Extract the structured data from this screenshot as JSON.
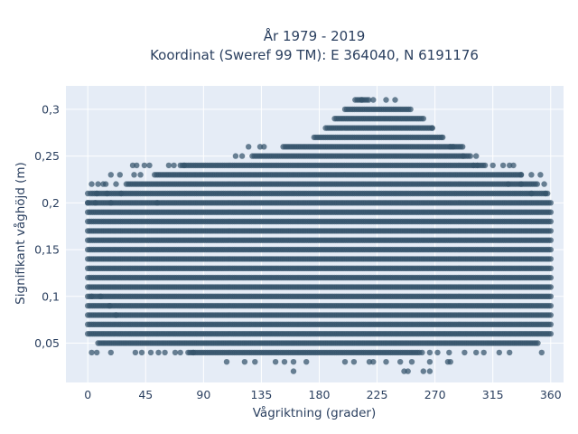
{
  "chart_data": {
    "type": "scatter",
    "title_line1": "År 1979 - 2019",
    "title_line2": "Koordinat (Sweref 99 TM): E 364040, N 6191176",
    "xlabel": "Vågriktning (grader)",
    "ylabel": "Signifikant våghöjd (m)",
    "xlim": [
      -17,
      370
    ],
    "ylim": [
      0.008,
      0.325
    ],
    "xticks": [
      0,
      45,
      90,
      135,
      180,
      225,
      270,
      315,
      360
    ],
    "xtick_labels": [
      "0",
      "45",
      "90",
      "135",
      "180",
      "225",
      "270",
      "315",
      "360"
    ],
    "yticks": [
      0.05,
      0.1,
      0.15,
      0.2,
      0.25,
      0.3
    ],
    "ytick_labels": [
      "0,05",
      "0,1",
      "0,15",
      "0,2",
      "0,25",
      "0,3"
    ],
    "grid": true,
    "marker_color": "#34536b",
    "background_color": "#e5ecf6",
    "series": [
      {
        "rows": [
          {
            "y": 0.31,
            "x_min": 208,
            "x_max": 219
          },
          {
            "y": 0.3,
            "x_min": 200,
            "x_max": 252
          },
          {
            "y": 0.29,
            "x_min": 192,
            "x_max": 261
          },
          {
            "y": 0.28,
            "x_min": 185,
            "x_max": 268
          },
          {
            "y": 0.27,
            "x_min": 176,
            "x_max": 276
          },
          {
            "y": 0.26,
            "x_min": 152,
            "x_max": 292
          },
          {
            "y": 0.25,
            "x_min": 128,
            "x_max": 298
          },
          {
            "y": 0.24,
            "x_min": 72,
            "x_max": 310
          },
          {
            "y": 0.23,
            "x_min": 52,
            "x_max": 338
          },
          {
            "y": 0.22,
            "x_min": 30,
            "x_max": 350
          },
          {
            "y": 0.21,
            "x_min": 2,
            "x_max": 358
          },
          {
            "y": 0.2,
            "x_min": 0,
            "x_max": 360
          },
          {
            "y": 0.19,
            "x_min": 0,
            "x_max": 360
          },
          {
            "y": 0.18,
            "x_min": 0,
            "x_max": 360
          },
          {
            "y": 0.17,
            "x_min": 0,
            "x_max": 360
          },
          {
            "y": 0.16,
            "x_min": 0,
            "x_max": 360
          },
          {
            "y": 0.15,
            "x_min": 0,
            "x_max": 360
          },
          {
            "y": 0.14,
            "x_min": 0,
            "x_max": 360
          },
          {
            "y": 0.13,
            "x_min": 0,
            "x_max": 360
          },
          {
            "y": 0.12,
            "x_min": 0,
            "x_max": 360
          },
          {
            "y": 0.11,
            "x_min": 0,
            "x_max": 360
          },
          {
            "y": 0.1,
            "x_min": 0,
            "x_max": 360
          },
          {
            "y": 0.09,
            "x_min": 0,
            "x_max": 360
          },
          {
            "y": 0.08,
            "x_min": 0,
            "x_max": 360
          },
          {
            "y": 0.07,
            "x_min": 0,
            "x_max": 360
          },
          {
            "y": 0.06,
            "x_min": 0,
            "x_max": 360
          },
          {
            "y": 0.05,
            "x_min": 8,
            "x_max": 350
          },
          {
            "y": 0.04,
            "x_min": 78,
            "x_max": 258
          }
        ],
        "sparse_points": [
          [
            213,
            0.31
          ],
          [
            222,
            0.31
          ],
          [
            232,
            0.31
          ],
          [
            239,
            0.31
          ],
          [
            268,
            0.28
          ],
          [
            276,
            0.27
          ],
          [
            282,
            0.26
          ],
          [
            284,
            0.26
          ],
          [
            125,
            0.26
          ],
          [
            134,
            0.26
          ],
          [
            137,
            0.26
          ],
          [
            115,
            0.25
          ],
          [
            120,
            0.25
          ],
          [
            292,
            0.25
          ],
          [
            302,
            0.25
          ],
          [
            35,
            0.24
          ],
          [
            38,
            0.24
          ],
          [
            44,
            0.24
          ],
          [
            48,
            0.24
          ],
          [
            63,
            0.24
          ],
          [
            67,
            0.24
          ],
          [
            75,
            0.24
          ],
          [
            300,
            0.24
          ],
          [
            303,
            0.24
          ],
          [
            315,
            0.24
          ],
          [
            323,
            0.24
          ],
          [
            328,
            0.24
          ],
          [
            331,
            0.24
          ],
          [
            18,
            0.23
          ],
          [
            25,
            0.23
          ],
          [
            36,
            0.23
          ],
          [
            41,
            0.23
          ],
          [
            337,
            0.23
          ],
          [
            345,
            0.23
          ],
          [
            352,
            0.23
          ],
          [
            3,
            0.22
          ],
          [
            8,
            0.22
          ],
          [
            12,
            0.22
          ],
          [
            14,
            0.22
          ],
          [
            22,
            0.22
          ],
          [
            327,
            0.22
          ],
          [
            337,
            0.22
          ],
          [
            355,
            0.22
          ],
          [
            0,
            0.21
          ],
          [
            7,
            0.21
          ],
          [
            15,
            0.21
          ],
          [
            26,
            0.21
          ],
          [
            345,
            0.21
          ],
          [
            356,
            0.21
          ],
          [
            0,
            0.2
          ],
          [
            6,
            0.2
          ],
          [
            18,
            0.2
          ],
          [
            54,
            0.2
          ],
          [
            3,
            0.1
          ],
          [
            10,
            0.1
          ],
          [
            17,
            0.09
          ],
          [
            22,
            0.08
          ],
          [
            3,
            0.04
          ],
          [
            7,
            0.04
          ],
          [
            18,
            0.04
          ],
          [
            37,
            0.04
          ],
          [
            42,
            0.04
          ],
          [
            49,
            0.04
          ],
          [
            55,
            0.04
          ],
          [
            60,
            0.04
          ],
          [
            68,
            0.04
          ],
          [
            72,
            0.04
          ],
          [
            82,
            0.04
          ],
          [
            260,
            0.04
          ],
          [
            266,
            0.04
          ],
          [
            272,
            0.04
          ],
          [
            281,
            0.04
          ],
          [
            293,
            0.04
          ],
          [
            302,
            0.04
          ],
          [
            308,
            0.04
          ],
          [
            320,
            0.04
          ],
          [
            328,
            0.04
          ],
          [
            353,
            0.04
          ],
          [
            108,
            0.03
          ],
          [
            122,
            0.03
          ],
          [
            130,
            0.03
          ],
          [
            146,
            0.03
          ],
          [
            153,
            0.03
          ],
          [
            160,
            0.03
          ],
          [
            170,
            0.03
          ],
          [
            200,
            0.03
          ],
          [
            207,
            0.03
          ],
          [
            219,
            0.03
          ],
          [
            222,
            0.03
          ],
          [
            232,
            0.03
          ],
          [
            243,
            0.03
          ],
          [
            252,
            0.03
          ],
          [
            266,
            0.03
          ],
          [
            280,
            0.03
          ],
          [
            282,
            0.03
          ],
          [
            160,
            0.02
          ],
          [
            246,
            0.02
          ],
          [
            249,
            0.02
          ],
          [
            261,
            0.02
          ],
          [
            266,
            0.02
          ]
        ]
      }
    ]
  }
}
